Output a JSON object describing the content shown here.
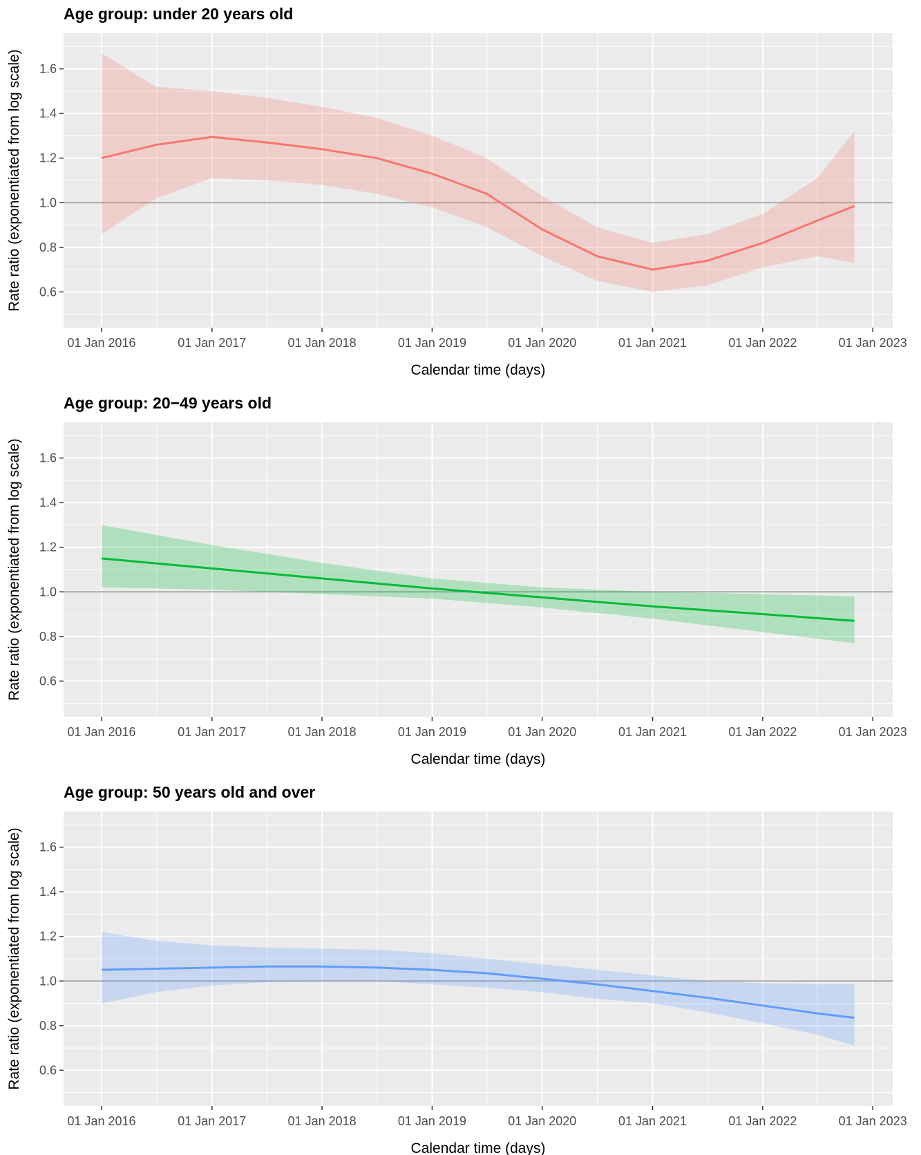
{
  "chart_data": [
    {
      "type": "line",
      "title": "Age group: under 20 years old",
      "xlabel": "Calendar time (days)",
      "ylabel": "Rate ratio (exponentiated from log scale)",
      "x_ticks": [
        "01 Jan 2016",
        "01 Jan 2017",
        "01 Jan 2018",
        "01 Jan 2019",
        "01 Jan 2020",
        "01 Jan 2021",
        "01 Jan 2022",
        "01 Jan 2023"
      ],
      "y_ticks": [
        "0.6",
        "0.8",
        "1.0",
        "1.2",
        "1.4",
        "1.6"
      ],
      "ylim": [
        0.44,
        1.76
      ],
      "xlim": [
        "2015-08-28",
        "2023-03-08"
      ],
      "reference_line": 1.0,
      "color": "#F8766D",
      "series": [
        {
          "x": [
            "2016-01-01",
            "2016-07-01",
            "2017-01-01",
            "2017-07-01",
            "2018-01-01",
            "2018-07-01",
            "2019-01-01",
            "2019-07-01",
            "2020-01-01",
            "2020-07-01",
            "2021-01-01",
            "2021-07-01",
            "2022-01-01",
            "2022-07-01",
            "2022-11-01"
          ],
          "y": [
            1.2,
            1.26,
            1.295,
            1.27,
            1.24,
            1.2,
            1.13,
            1.04,
            0.88,
            0.76,
            0.7,
            0.74,
            0.82,
            0.92,
            0.985
          ],
          "lower": [
            0.86,
            1.02,
            1.11,
            1.1,
            1.08,
            1.04,
            0.98,
            0.89,
            0.76,
            0.65,
            0.6,
            0.63,
            0.71,
            0.76,
            0.73
          ],
          "upper": [
            1.67,
            1.52,
            1.5,
            1.47,
            1.43,
            1.38,
            1.3,
            1.2,
            1.03,
            0.89,
            0.82,
            0.86,
            0.95,
            1.11,
            1.32
          ]
        }
      ]
    },
    {
      "type": "line",
      "title": "Age group: 20−49 years old",
      "xlabel": "Calendar time (days)",
      "ylabel": "Rate ratio (exponentiated from log scale)",
      "x_ticks": [
        "01 Jan 2016",
        "01 Jan 2017",
        "01 Jan 2018",
        "01 Jan 2019",
        "01 Jan 2020",
        "01 Jan 2021",
        "01 Jan 2022",
        "01 Jan 2023"
      ],
      "y_ticks": [
        "0.6",
        "0.8",
        "1.0",
        "1.2",
        "1.4",
        "1.6"
      ],
      "ylim": [
        0.44,
        1.76
      ],
      "xlim": [
        "2015-08-28",
        "2023-03-08"
      ],
      "reference_line": 1.0,
      "color": "#00BA38",
      "series": [
        {
          "x": [
            "2016-01-01",
            "2017-01-01",
            "2018-01-01",
            "2019-01-01",
            "2020-01-01",
            "2021-01-01",
            "2022-01-01",
            "2022-11-01"
          ],
          "y": [
            1.15,
            1.105,
            1.06,
            1.015,
            0.975,
            0.935,
            0.9,
            0.87
          ],
          "lower": [
            1.02,
            1.01,
            0.99,
            0.97,
            0.93,
            0.88,
            0.82,
            0.77
          ],
          "upper": [
            1.3,
            1.21,
            1.13,
            1.06,
            1.02,
            1.0,
            0.99,
            0.98
          ]
        }
      ]
    },
    {
      "type": "line",
      "title": "Age group: 50 years old and over",
      "xlabel": "Calendar time (days)",
      "ylabel": "Rate ratio (exponentiated from log scale)",
      "x_ticks": [
        "01 Jan 2016",
        "01 Jan 2017",
        "01 Jan 2018",
        "01 Jan 2019",
        "01 Jan 2020",
        "01 Jan 2021",
        "01 Jan 2022",
        "01 Jan 2023"
      ],
      "y_ticks": [
        "0.6",
        "0.8",
        "1.0",
        "1.2",
        "1.4",
        "1.6"
      ],
      "ylim": [
        0.44,
        1.76
      ],
      "xlim": [
        "2015-08-28",
        "2023-03-08"
      ],
      "reference_line": 1.0,
      "color": "#619CFF",
      "series": [
        {
          "x": [
            "2016-01-01",
            "2016-07-01",
            "2017-01-01",
            "2017-07-01",
            "2018-01-01",
            "2018-07-01",
            "2019-01-01",
            "2019-07-01",
            "2020-01-01",
            "2020-07-01",
            "2021-01-01",
            "2021-07-01",
            "2022-01-01",
            "2022-07-01",
            "2022-11-01"
          ],
          "y": [
            1.05,
            1.055,
            1.06,
            1.065,
            1.065,
            1.06,
            1.05,
            1.035,
            1.01,
            0.985,
            0.955,
            0.925,
            0.89,
            0.855,
            0.835
          ],
          "lower": [
            0.9,
            0.95,
            0.98,
            0.995,
            1.0,
            1.0,
            0.985,
            0.97,
            0.95,
            0.92,
            0.9,
            0.86,
            0.81,
            0.76,
            0.71
          ],
          "upper": [
            1.22,
            1.18,
            1.16,
            1.15,
            1.145,
            1.14,
            1.125,
            1.1,
            1.075,
            1.05,
            1.025,
            1.0,
            0.99,
            0.985,
            0.985
          ]
        }
      ]
    }
  ]
}
